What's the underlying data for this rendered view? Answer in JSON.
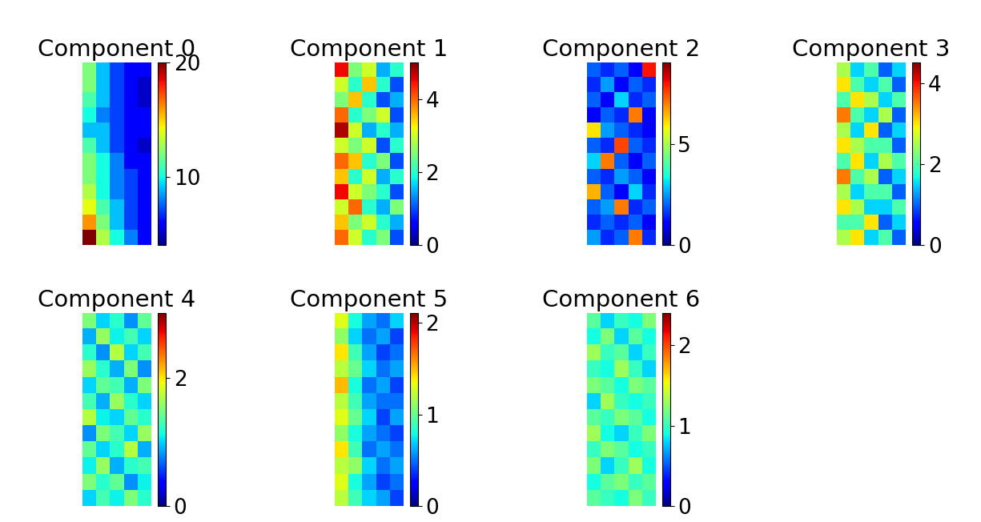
{
  "chart_data": [
    {
      "type": "heatmap",
      "title": "Component 0",
      "color": "jet",
      "tick_labels": false,
      "colorbar_range": [
        4,
        20
      ],
      "colorbar_ticks": [
        10,
        20
      ],
      "cells": [
        [
          12,
          9,
          7,
          6,
          6
        ],
        [
          12,
          9,
          7,
          6,
          5
        ],
        [
          11,
          9,
          7,
          6,
          5
        ],
        [
          10,
          8,
          7,
          6,
          6
        ],
        [
          9,
          9,
          7,
          6,
          6
        ],
        [
          11,
          9,
          7,
          6,
          5
        ],
        [
          12,
          10,
          8,
          6,
          6
        ],
        [
          12,
          10,
          8,
          7,
          6
        ],
        [
          13,
          10,
          8,
          7,
          6
        ],
        [
          14,
          11,
          9,
          7,
          6
        ],
        [
          16,
          12,
          9,
          7,
          6
        ],
        [
          20,
          13,
          10,
          8,
          6
        ]
      ]
    },
    {
      "type": "heatmap",
      "title": "Component 1",
      "color": "jet",
      "tick_labels": false,
      "colorbar_range": [
        0,
        5
      ],
      "colorbar_ticks": [
        0,
        2,
        4
      ],
      "cells": [
        [
          4.5,
          2.5,
          3,
          1.5,
          2
        ],
        [
          3,
          2,
          3.5,
          2,
          1
        ],
        [
          2.5,
          3.5,
          2,
          1,
          1.5
        ],
        [
          4,
          2,
          2.5,
          3,
          1
        ],
        [
          4.8,
          3,
          1.5,
          2,
          1.5
        ],
        [
          3,
          2.5,
          3,
          1,
          2
        ],
        [
          4,
          3.5,
          2,
          2.5,
          1
        ],
        [
          3.5,
          2,
          3,
          1.5,
          2
        ],
        [
          4.5,
          3,
          2.5,
          2,
          1
        ],
        [
          3,
          4,
          2,
          1.5,
          2.5
        ],
        [
          3.5,
          2.5,
          3,
          2,
          1.5
        ],
        [
          4,
          3,
          2,
          2.5,
          1
        ]
      ]
    },
    {
      "type": "heatmap",
      "title": "Component 2",
      "color": "jet",
      "tick_labels": false,
      "colorbar_range": [
        0,
        9
      ],
      "colorbar_ticks": [
        0,
        5
      ],
      "cells": [
        [
          2,
          1.5,
          2,
          1,
          8
        ],
        [
          1.5,
          2.5,
          1,
          2,
          1.5
        ],
        [
          2,
          1,
          3,
          1.5,
          2
        ],
        [
          1,
          2,
          1.5,
          7,
          1
        ],
        [
          6,
          2.5,
          2,
          1.5,
          1
        ],
        [
          2,
          1.5,
          7.5,
          2,
          1.5
        ],
        [
          3,
          7,
          2,
          1,
          2
        ],
        [
          2,
          1.5,
          2.5,
          2,
          1
        ],
        [
          6.5,
          2,
          1,
          3,
          1.5
        ],
        [
          2,
          2.5,
          7,
          1.5,
          2
        ],
        [
          1.5,
          2,
          1.5,
          2,
          1
        ],
        [
          2.5,
          1.5,
          2,
          7,
          1.5
        ]
      ]
    },
    {
      "type": "heatmap",
      "title": "Component 3",
      "color": "jet",
      "tick_labels": false,
      "colorbar_range": [
        0,
        4.5
      ],
      "colorbar_ticks": [
        0,
        2,
        4
      ],
      "cells": [
        [
          2.5,
          1.5,
          2,
          1,
          1.5
        ],
        [
          3,
          2,
          1.5,
          2,
          1
        ],
        [
          2,
          3,
          2.5,
          1.5,
          2
        ],
        [
          3.5,
          2,
          1.5,
          2.5,
          1
        ],
        [
          2.5,
          1.5,
          3,
          1,
          1.5
        ],
        [
          3,
          2.5,
          2,
          2,
          1
        ],
        [
          2,
          3,
          1.5,
          2.5,
          2
        ],
        [
          3.5,
          2,
          2.5,
          1,
          1.5
        ],
        [
          2.5,
          1.5,
          2,
          2,
          1
        ],
        [
          3,
          2.5,
          1.5,
          1.5,
          2
        ],
        [
          2,
          2,
          3,
          1,
          1.5
        ],
        [
          2.5,
          3,
          1.5,
          2,
          1
        ]
      ]
    },
    {
      "type": "heatmap",
      "title": "Component 4",
      "color": "jet",
      "tick_labels": false,
      "colorbar_range": [
        0,
        3
      ],
      "colorbar_ticks": [
        0,
        2
      ],
      "cells": [
        [
          1.5,
          1,
          1.2,
          0.8,
          1.4
        ],
        [
          0.9,
          1.6,
          1.1,
          1.3,
          1
        ],
        [
          1.2,
          0.8,
          1.7,
          1,
          1.3
        ],
        [
          1.6,
          1.2,
          0.9,
          1.5,
          0.8
        ],
        [
          1,
          1.4,
          1.3,
          0.9,
          1.5
        ],
        [
          1.3,
          0.9,
          1.6,
          1.2,
          1
        ],
        [
          1.7,
          1.1,
          1,
          1.4,
          1.2
        ],
        [
          0.8,
          1.5,
          1.3,
          1,
          1.6
        ],
        [
          1.4,
          1,
          1.2,
          1.7,
          0.9
        ],
        [
          1.1,
          1.6,
          0.9,
          1.2,
          1.3
        ],
        [
          1.5,
          1.2,
          1.4,
          0.8,
          1.1
        ],
        [
          1,
          1.3,
          1.1,
          1.5,
          1.2
        ]
      ]
    },
    {
      "type": "heatmap",
      "title": "Component 5",
      "color": "jet",
      "tick_labels": false,
      "colorbar_range": [
        0,
        2.1
      ],
      "colorbar_ticks": [
        0,
        1,
        2
      ],
      "cells": [
        [
          1.3,
          0.8,
          0.6,
          0.5,
          0.7
        ],
        [
          1.1,
          0.7,
          0.5,
          0.6,
          0.4
        ],
        [
          1.4,
          0.9,
          0.6,
          0.4,
          0.5
        ],
        [
          1.2,
          1,
          0.7,
          0.5,
          0.6
        ],
        [
          1.5,
          0.8,
          0.5,
          0.6,
          0.4
        ],
        [
          1.2,
          0.9,
          0.6,
          0.5,
          0.5
        ],
        [
          1.3,
          1,
          0.7,
          0.4,
          0.6
        ],
        [
          1.1,
          0.8,
          0.6,
          0.5,
          0.4
        ],
        [
          1.4,
          0.9,
          0.5,
          0.6,
          0.5
        ],
        [
          1.2,
          1.1,
          0.7,
          0.5,
          0.6
        ],
        [
          1.3,
          0.8,
          0.6,
          0.4,
          0.5
        ],
        [
          1.2,
          0.9,
          0.7,
          0.6,
          0.4
        ]
      ]
    },
    {
      "type": "heatmap",
      "title": "Component 6",
      "color": "jet",
      "tick_labels": false,
      "colorbar_range": [
        0,
        2.4
      ],
      "colorbar_ticks": [
        0,
        1,
        2
      ],
      "cells": [
        [
          1.1,
          0.8,
          1,
          0.9,
          1.2
        ],
        [
          0.9,
          1.2,
          0.8,
          1.1,
          0.9
        ],
        [
          1.3,
          1,
          1.1,
          0.8,
          1
        ],
        [
          1,
          0.9,
          1.3,
          1,
          0.8
        ],
        [
          1.2,
          1.1,
          0.9,
          1.2,
          1.1
        ],
        [
          0.8,
          1.3,
          1,
          0.9,
          1
        ],
        [
          1.1,
          1,
          1.2,
          1.1,
          0.9
        ],
        [
          1.3,
          0.9,
          0.8,
          1,
          1.2
        ],
        [
          1,
          1.2,
          1.1,
          0.9,
          1
        ],
        [
          1.2,
          0.8,
          1,
          1.3,
          0.9
        ],
        [
          0.9,
          1.1,
          1.2,
          1,
          1.1
        ],
        [
          1.1,
          1,
          0.9,
          1.2,
          1
        ]
      ]
    }
  ]
}
